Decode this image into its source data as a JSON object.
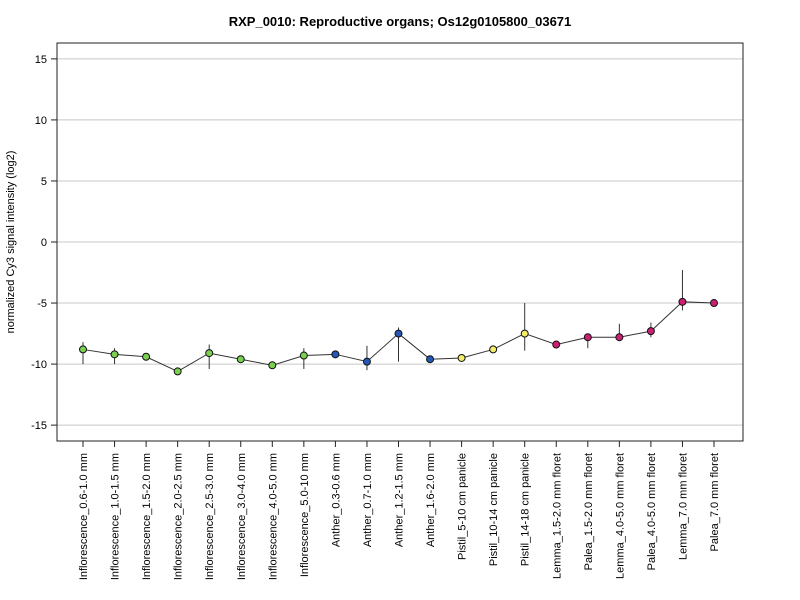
{
  "chart_data": {
    "type": "line",
    "title": "RXP_0010: Reproductive organs; Os12g0105800_03671",
    "ylabel": "normalized Cy3 signal intensity (log2)",
    "xlabel": "",
    "ylim": [
      -16.3,
      16.3
    ],
    "yticks": [
      -15,
      -10,
      -5,
      0,
      5,
      10,
      15
    ],
    "grid": true,
    "categories": [
      "Inflorescence_0.6-1.0 mm",
      "Inflorescence_1.0-1.5 mm",
      "Inflorescence_1.5-2.0 mm",
      "Inflorescence_2.0-2.5 mm",
      "Inflorescence_2.5-3.0 mm",
      "Inflorescence_3.0-4.0 mm",
      "Inflorescence_4.0-5.0 mm",
      "Inflorescence_5.0-10 mm",
      "Anther_0.3-0.6 mm",
      "Anther_0.7-1.0 mm",
      "Anther_1.2-1.5 mm",
      "Anther_1.6-2.0 mm",
      "Pistil_5-10 cm panicle",
      "Pistil_10-14 cm panicle",
      "Pistil_14-18 cm panicle",
      "Lemma_1.5-2.0 mm floret",
      "Palea_1.5-2.0 mm floret",
      "Lemma_4.0-5.0 mm floret",
      "Palea_4.0-5.0 mm floret",
      "Lemma_7.0 mm floret",
      "Palea_7.0 mm floret"
    ],
    "values": [
      -8.8,
      -9.2,
      -9.4,
      -10.6,
      -9.1,
      -9.6,
      -10.1,
      -9.3,
      -9.2,
      -9.8,
      -7.5,
      -9.6,
      -9.5,
      -8.8,
      -7.5,
      -8.4,
      -7.8,
      -7.8,
      -7.3,
      -4.9,
      -5.0
    ],
    "error_low": [
      -10.0,
      -10.0,
      -9.6,
      -10.7,
      -10.4,
      -9.7,
      -10.4,
      -10.4,
      -9.4,
      -10.5,
      -9.8,
      -9.7,
      -9.6,
      -8.9,
      -8.9,
      -8.5,
      -8.7,
      -7.9,
      -7.8,
      -5.6,
      -5.2
    ],
    "error_high": [
      -8.2,
      -8.7,
      -9.2,
      -10.5,
      -8.4,
      -9.5,
      -9.8,
      -8.7,
      -9.0,
      -8.5,
      -7.0,
      -9.5,
      -9.4,
      -8.7,
      -5.0,
      -8.3,
      -7.7,
      -6.7,
      -6.6,
      -2.3,
      -4.8
    ],
    "point_colors": [
      "#7ad151",
      "#7ad151",
      "#7ad151",
      "#7ad151",
      "#7ad151",
      "#7ad151",
      "#7ad151",
      "#7ad151",
      "#2557b5",
      "#2557b5",
      "#2557b5",
      "#2557b5",
      "#f2ee6a",
      "#f2ee6a",
      "#f2ee6a",
      "#cc1f73",
      "#cc1f73",
      "#cc1f73",
      "#cc1f73",
      "#cc1f73",
      "#cc1f73"
    ],
    "line_color": "#333333",
    "grid_color": "#c8c8c8"
  }
}
